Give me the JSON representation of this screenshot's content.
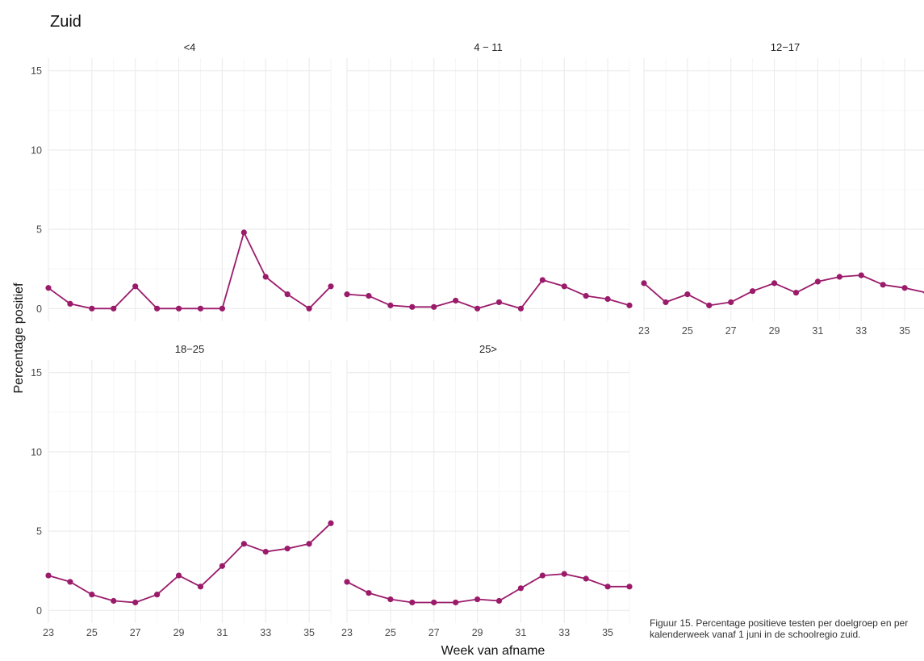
{
  "chart_data": {
    "type": "line",
    "title": "Zuid",
    "xlabel": "Week van afname",
    "ylabel": "Percentage positief",
    "xlim": [
      23,
      36
    ],
    "ylim": [
      -0.8,
      15.8
    ],
    "x_ticks": [
      23,
      25,
      27,
      29,
      31,
      33,
      35
    ],
    "y_ticks": [
      0,
      5,
      10,
      15
    ],
    "grid": true,
    "color": "#9b1b6b",
    "x": [
      23,
      24,
      25,
      26,
      27,
      28,
      29,
      30,
      31,
      32,
      33,
      34,
      35,
      36
    ],
    "panels": [
      {
        "name": "<4",
        "values": [
          1.3,
          0.3,
          0.0,
          0.0,
          1.4,
          0.0,
          0.0,
          0.0,
          0.0,
          4.8,
          2.0,
          0.9,
          0.0,
          1.4
        ]
      },
      {
        "name": "4 − 11",
        "values": [
          0.9,
          0.8,
          0.2,
          0.1,
          0.1,
          0.5,
          0.0,
          0.4,
          0.0,
          1.8,
          1.4,
          0.8,
          0.6,
          0.2
        ]
      },
      {
        "name": "12−17",
        "values": [
          1.6,
          0.4,
          0.9,
          0.2,
          0.4,
          1.1,
          1.6,
          1.0,
          1.7,
          2.0,
          2.1,
          1.5,
          1.3,
          1.0
        ]
      },
      {
        "name": "18−25",
        "values": [
          2.2,
          1.8,
          1.0,
          0.6,
          0.5,
          1.0,
          2.2,
          1.5,
          2.8,
          4.2,
          3.7,
          3.9,
          4.2,
          5.5
        ]
      },
      {
        "name": "25>",
        "values": [
          1.8,
          1.1,
          0.7,
          0.5,
          0.5,
          0.5,
          0.7,
          0.6,
          1.4,
          2.2,
          2.3,
          2.0,
          1.5,
          1.5
        ]
      }
    ]
  },
  "caption": "Figuur 15. Percentage positieve testen per doelgroep en per kalenderweek vanaf 1 juni in de schoolregio zuid."
}
